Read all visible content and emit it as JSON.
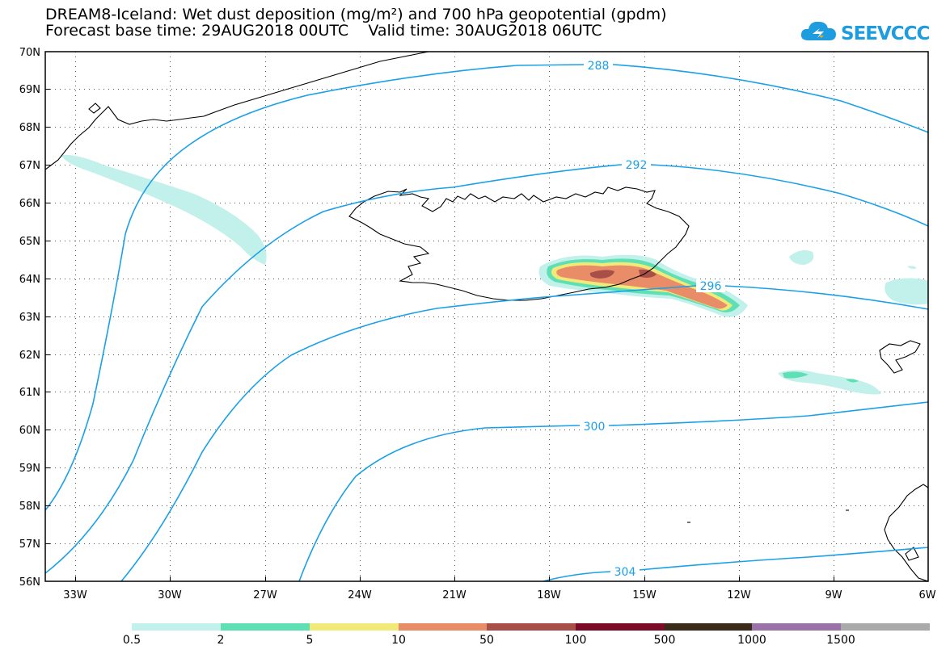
{
  "title": {
    "line1": "DREAM8-Iceland: Wet dust deposition (mg/m²) and 700 hPa geopotential (gpdm)",
    "line2": "Forecast base time: 29AUG2018 00UTC    Valid time: 30AUG2018 06UTC"
  },
  "logo": {
    "text": "SEEVCCC",
    "icon": "cloud-icon",
    "color": "#1e9ce0"
  },
  "map": {
    "lat_labels": [
      "70N",
      "69N",
      "68N",
      "67N",
      "66N",
      "65N",
      "64N",
      "63N",
      "62N",
      "61N",
      "60N",
      "59N",
      "58N",
      "57N",
      "56N"
    ],
    "lon_labels": [
      "33W",
      "30W",
      "27W",
      "24W",
      "21W",
      "18W",
      "15W",
      "12W",
      "9W",
      "6W"
    ],
    "contour_labels": [
      "288",
      "292",
      "296",
      "300",
      "304"
    ],
    "contour_color": "#1aa0e8"
  },
  "colorbar": {
    "labels": [
      "0.5",
      "2",
      "5",
      "10",
      "50",
      "100",
      "500",
      "1000",
      "1500"
    ],
    "colors": [
      "#c2f0ea",
      "#5ee0b4",
      "#f2ea78",
      "#e98c68",
      "#a84f48",
      "#7a0c2a",
      "#3a2a1a",
      "#9a72a8",
      "#aaaaaa"
    ]
  }
}
